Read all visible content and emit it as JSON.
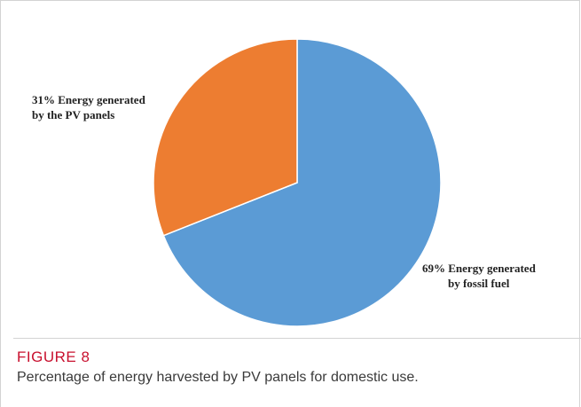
{
  "chart_data": {
    "type": "pie",
    "title": "",
    "start_angle_deg": 0,
    "direction": "clockwise",
    "slices": [
      {
        "label_lines": [
          "69% Energy generated",
          "by fossil fuel"
        ],
        "value": 69,
        "color": "#5b9bd5"
      },
      {
        "label_lines": [
          "31% Energy generated",
          "by the PV panels"
        ],
        "value": 31,
        "color": "#ed7d31"
      }
    ]
  },
  "figure": {
    "number": "FIGURE 8",
    "caption": "Percentage of energy harvested by PV panels for domestic use."
  },
  "colors": {
    "caption_accent": "#c8102e"
  }
}
